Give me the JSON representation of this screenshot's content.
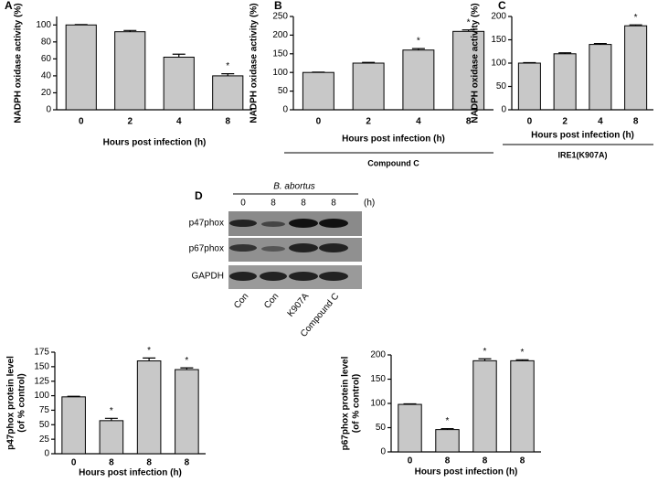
{
  "chart_data": [
    {
      "type": "bar",
      "panel": "A",
      "ylabel": "NADPH oxidase activity (%)",
      "xlabel": "Hours post infection (h)",
      "categories": [
        "0",
        "2",
        "4",
        "8"
      ],
      "values": [
        100,
        92,
        62,
        40
      ],
      "errors": [
        0.5,
        1.5,
        3.5,
        2.5
      ],
      "annotations": [
        null,
        null,
        null,
        "*"
      ],
      "ylim": [
        0,
        110
      ],
      "yticks": [
        0,
        20,
        40,
        60,
        80,
        100
      ],
      "color": "#c8c8c8"
    },
    {
      "type": "bar",
      "panel": "B",
      "ylabel": "NADPH oxidase activity (%)",
      "xlabel": "Hours post infection (h)",
      "treatment": "Compound C",
      "categories": [
        "0",
        "2",
        "4",
        "8"
      ],
      "values": [
        100,
        125,
        160,
        210
      ],
      "errors": [
        1,
        2,
        4,
        4
      ],
      "annotations": [
        null,
        null,
        "*",
        "*"
      ],
      "ylim": [
        0,
        250
      ],
      "yticks": [
        0,
        50,
        100,
        150,
        200,
        250
      ],
      "color": "#c8c8c8"
    },
    {
      "type": "bar",
      "panel": "C",
      "ylabel": "NADPH oxidase activity (%)",
      "xlabel": "Hours post infection (h)",
      "treatment": "IRE1(K907A)",
      "categories": [
        "0",
        "2",
        "4",
        "8"
      ],
      "values": [
        100,
        120,
        140,
        180
      ],
      "errors": [
        1,
        2,
        2,
        2
      ],
      "annotations": [
        null,
        null,
        null,
        "*"
      ],
      "ylim": [
        0,
        200
      ],
      "yticks": [
        0,
        50,
        100,
        150,
        200
      ],
      "color": "#c8c8c8"
    },
    {
      "type": "bar",
      "ylabel": [
        "p47phox protein level",
        "(of % control)"
      ],
      "xlabel": "Hours post infection (h)",
      "categories": [
        "0",
        "8",
        "8",
        "8"
      ],
      "values": [
        98,
        57,
        160,
        145
      ],
      "errors": [
        1,
        4,
        5,
        3
      ],
      "annotations": [
        null,
        "*",
        "*",
        "*"
      ],
      "ylim": [
        0,
        175
      ],
      "yticks": [
        0,
        25,
        50,
        75,
        100,
        125,
        150,
        175
      ],
      "color": "#c8c8c8"
    },
    {
      "type": "bar",
      "ylabel": [
        "p67phox protein level",
        "(of % control)"
      ],
      "xlabel": "Hours post infection (h)",
      "categories": [
        "0",
        "8",
        "8",
        "8"
      ],
      "values": [
        98,
        46,
        188,
        188
      ],
      "errors": [
        1,
        2,
        4,
        2
      ],
      "annotations": [
        null,
        "*",
        "*",
        "*"
      ],
      "ylim": [
        0,
        200
      ],
      "yticks": [
        0,
        50,
        100,
        150,
        200
      ],
      "color": "#c8c8c8"
    }
  ],
  "blot": {
    "panel": "D",
    "strain": "B. abortus",
    "unit": "(h)",
    "hours": [
      "0",
      "8",
      "8",
      "8"
    ],
    "rows": [
      "p47phox",
      "p67phox",
      "GAPDH"
    ],
    "lanes": [
      "Con",
      "Con",
      "K907A",
      "Compound C"
    ]
  }
}
